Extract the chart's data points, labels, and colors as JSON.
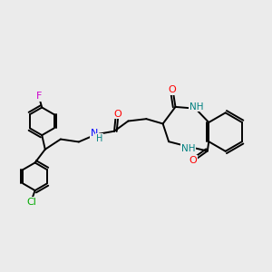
{
  "bg_color": "#ebebeb",
  "bond_color": "#000000",
  "bond_width": 1.4,
  "figsize": [
    3.0,
    3.0
  ],
  "dpi": 100,
  "atom_colors": {
    "F": "#cc00cc",
    "Cl": "#00aa00",
    "O": "#ff0000",
    "N": "#0000ff",
    "NH": "#008080",
    "C": "#000000"
  }
}
